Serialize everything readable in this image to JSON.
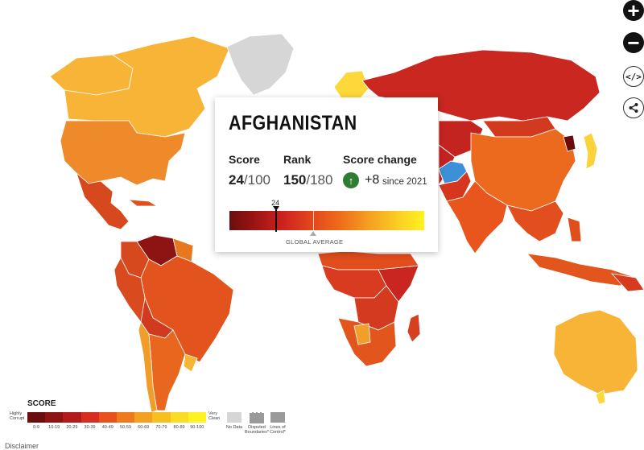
{
  "popup": {
    "country": "AFGHANISTAN",
    "score_label": "Score",
    "score_value": "24",
    "score_total": "/100",
    "rank_label": "Rank",
    "rank_value": "150",
    "rank_total": "/180",
    "change_label": "Score change",
    "change_value": "+8",
    "change_since": "since 2021",
    "change_icon": "arrow-up-icon",
    "marker_value": "24",
    "marker_fraction": 0.24,
    "average_label": "GLOBAL AVERAGE"
  },
  "controls": {
    "zoom_in": "+",
    "zoom_out": "−",
    "embed": "</>",
    "share_icon": "share-icon"
  },
  "legend": {
    "title": "SCORE",
    "left_label": "Highly Corrupt",
    "right_label": "Very Clean",
    "bins": [
      "0-9",
      "10-19",
      "20-29",
      "30-39",
      "40-49",
      "50-59",
      "60-69",
      "70-79",
      "80-89",
      "90-100"
    ],
    "colors": [
      "#6b0d0d",
      "#8e1414",
      "#b31a1a",
      "#d62d20",
      "#e8511c",
      "#ef7a1c",
      "#f4a122",
      "#f7c021",
      "#fadc24",
      "#fff223"
    ],
    "no_data": "No Data",
    "disputed": "Disputed Boundaries*",
    "lines_of_control": "Lines of Control*"
  },
  "colors": {
    "selected_country": "#3d8fd6",
    "no_data": "#d6d6d6",
    "ocean": "#ffffff"
  },
  "disclaimer": "Disclaimer"
}
